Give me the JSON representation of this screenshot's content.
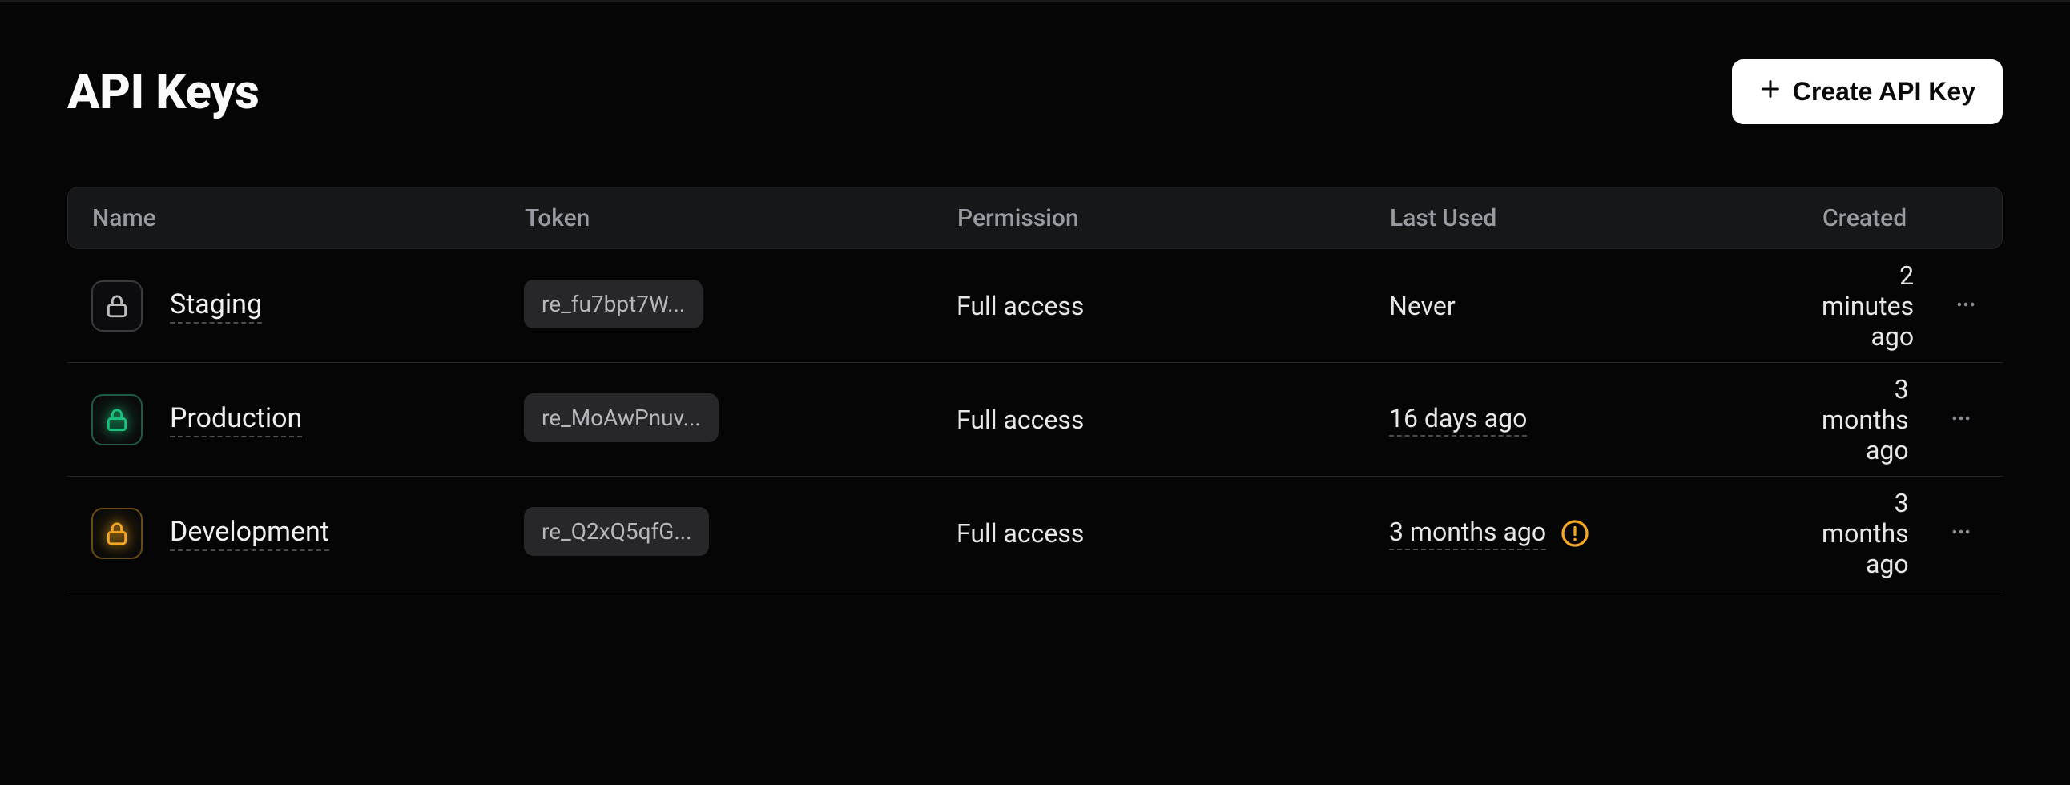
{
  "header": {
    "title": "API Keys",
    "create_button_label": "Create API Key"
  },
  "table": {
    "columns": {
      "name": "Name",
      "token": "Token",
      "permission": "Permission",
      "last_used": "Last Used",
      "created": "Created"
    },
    "rows": [
      {
        "name": "Staging",
        "token": "re_fu7bpt7W...",
        "permission": "Full access",
        "last_used": "Never",
        "last_used_underlined": false,
        "warning": false,
        "created": "2 minutes ago",
        "lock_color": "#bdbdbd",
        "lock_variant": "gray"
      },
      {
        "name": "Production",
        "token": "re_MoAwPnuv...",
        "permission": "Full access",
        "last_used": "16 days ago",
        "last_used_underlined": true,
        "warning": false,
        "created": "3 months ago",
        "lock_color": "#19c37d",
        "lock_variant": "green"
      },
      {
        "name": "Development",
        "token": "re_Q2xQ5qfG...",
        "permission": "Full access",
        "last_used": "3 months ago",
        "last_used_underlined": true,
        "warning": true,
        "created": "3 months ago",
        "lock_color": "#f5a623",
        "lock_variant": "amber"
      }
    ]
  },
  "colors": {
    "background": "#050505",
    "text_primary": "#e7e7e7",
    "text_muted": "#9a9aa2",
    "header_bg": "#161719",
    "border": "#27272a",
    "chip_bg": "#27272a",
    "chip_text": "#b6b6bd",
    "button_bg": "#ffffff",
    "button_text": "#0a0a0a",
    "warning": "#f5a623"
  }
}
